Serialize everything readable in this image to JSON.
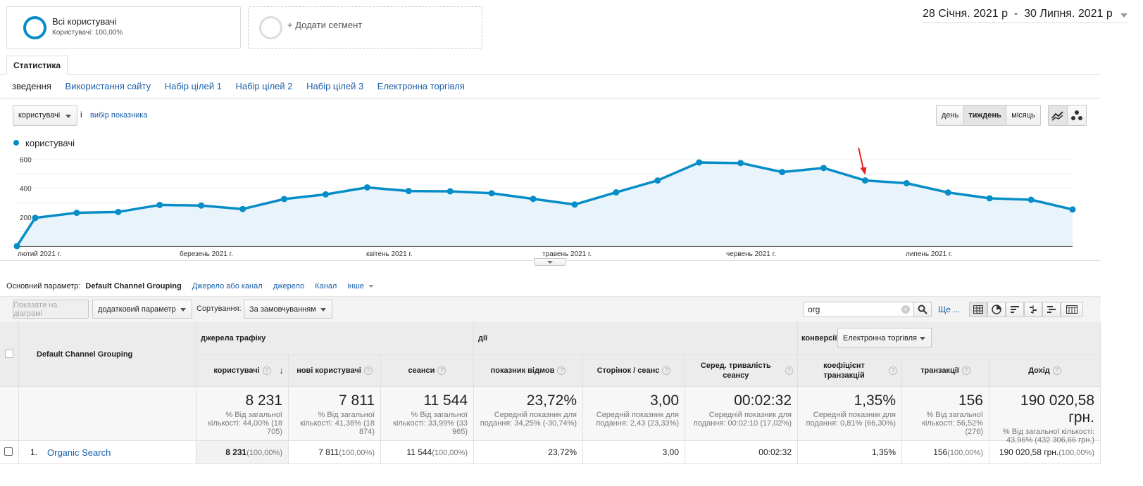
{
  "segments": {
    "active": {
      "name": "Всі користувачі",
      "sub": "Користувачі: 100,00%"
    },
    "add_label": "+ Додати сегмент"
  },
  "date_range": "28 Січня. 2021 р  -  30 Липня. 2021 р",
  "tab_label": "Статистика",
  "subtabs": [
    "зведення",
    "Використання сайту",
    "Набір цілей 1",
    "Набір цілей 2",
    "Набір цілей 3",
    "Електронна торгівля"
  ],
  "metric_select": "користувачі",
  "metric_and": "і",
  "metric_pick": "вибір показника",
  "granularity": {
    "day": "день",
    "week": "тиждень",
    "month": "місяць"
  },
  "colors": {
    "series": "#058dc7",
    "fill": "#e6f2fa",
    "arrow": "#e8231e"
  },
  "chart_data": {
    "type": "area",
    "series": [
      {
        "name": "користувачі",
        "values": [
          0,
          195,
          230,
          236,
          284,
          280,
          256,
          325,
          357,
          405,
          380,
          378,
          365,
          326,
          287,
          371,
          453,
          577,
          573,
          511,
          539,
          453,
          434,
          370,
          330,
          320,
          253
        ]
      }
    ],
    "yticks": [
      "200",
      "400",
      "600"
    ],
    "ylim": [
      0,
      640
    ],
    "month_labels": [
      "лютий 2021 г.",
      "березень 2021 г.",
      "квітень 2021 г.",
      "травень 2021 г.",
      "червень 2021 г.",
      "липень 2021 г."
    ],
    "annotation": "arrow pointing at week 22 value"
  },
  "primary_dim": {
    "label": "Основний параметр:",
    "current": "Default Channel Grouping",
    "options": [
      "Джерело або канал",
      "джерело",
      "Канал",
      "інше"
    ]
  },
  "toolbar": {
    "plot_rows": "Показати на діаграмі",
    "secondary": "додатковий параметр",
    "sort_label": "Сортування:",
    "sort_value": "За замовчуванням",
    "search_value": "org",
    "more": "Ще ..."
  },
  "table": {
    "group_headers": {
      "acquisition": "джерела трафіку",
      "behavior": "дії",
      "conversions": "конверсії",
      "conv_select": "Електронна торгівля"
    },
    "dim_header": "Default Channel Grouping",
    "columns": [
      "користувачі",
      "нові користувачі",
      "сеанси",
      "показник відмов",
      "Сторінок / сеанс",
      "Серед. тривалість сеансу",
      "коефіцієнт транзакцій",
      "транзакції",
      "Дохід"
    ],
    "totals": [
      {
        "value": "8 231",
        "sub": "% Від загальної кількості: 44,00% (18 705)"
      },
      {
        "value": "7 811",
        "sub": "% Від загальної кількості: 41,38% (18 874)"
      },
      {
        "value": "11 544",
        "sub": "% Від загальної кількості: 33,99% (33 965)"
      },
      {
        "value": "23,72%",
        "sub": "Середній показник для подання: 34,25% (-30,74%)"
      },
      {
        "value": "3,00",
        "sub": "Середній показник для подання: 2,43 (23,33%)"
      },
      {
        "value": "00:02:32",
        "sub": "Середній показник для подання: 00:02:10 (17,02%)"
      },
      {
        "value": "1,35%",
        "sub": "Середній показник для подання: 0,81% (66,30%)"
      },
      {
        "value": "156",
        "sub": "% Від загальної кількості: 56,52% (276)"
      },
      {
        "value": "190 020,58 грн.",
        "sub": "% Від загальної кількості: 43,96% (432 306,66 грн.)"
      }
    ],
    "rows": [
      {
        "index": "1.",
        "name": "Organic Search",
        "cells": [
          {
            "v": "8 231",
            "p": "(100,00%)"
          },
          {
            "v": "7 811",
            "p": "(100,00%)"
          },
          {
            "v": "11 544",
            "p": "(100,00%)"
          },
          {
            "v": "23,72%",
            "p": ""
          },
          {
            "v": "3,00",
            "p": ""
          },
          {
            "v": "00:02:32",
            "p": ""
          },
          {
            "v": "1,35%",
            "p": ""
          },
          {
            "v": "156",
            "p": "(100,00%)"
          },
          {
            "v": "190 020,58 грн.",
            "p": "(100,00%)"
          }
        ]
      }
    ]
  }
}
